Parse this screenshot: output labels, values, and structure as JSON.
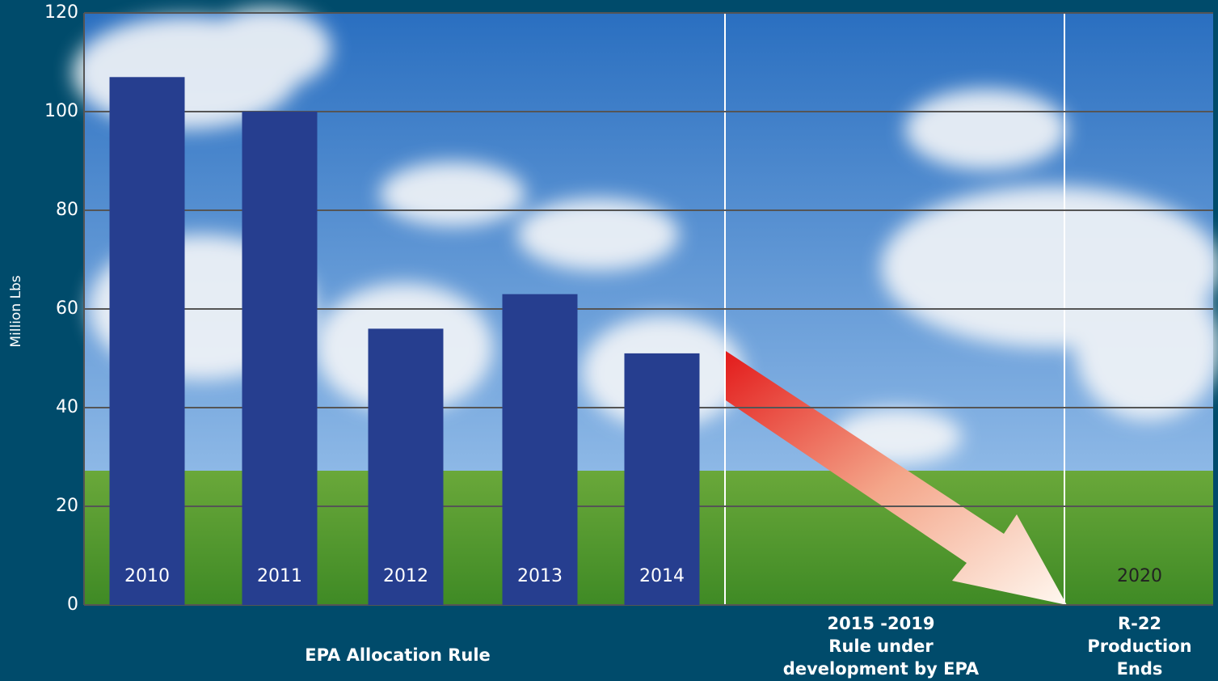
{
  "chart_data": {
    "type": "bar",
    "y_label": "Million Lbs",
    "categories": [
      "2010",
      "2011",
      "2012",
      "2013",
      "2014"
    ],
    "values": [
      107,
      100,
      56,
      63,
      51
    ],
    "color": "#263e8f",
    "ylim": [
      0,
      120
    ],
    "yticks": [
      0,
      20,
      40,
      60,
      80,
      100,
      120
    ],
    "grid": true,
    "annotation": "2020",
    "phase_labels": [
      [
        "EPA Allocation Rule"
      ],
      [
        "2015 -2019",
        "Rule under",
        "development by EPA"
      ],
      [
        "R-22",
        "Production",
        "Ends"
      ]
    ]
  }
}
